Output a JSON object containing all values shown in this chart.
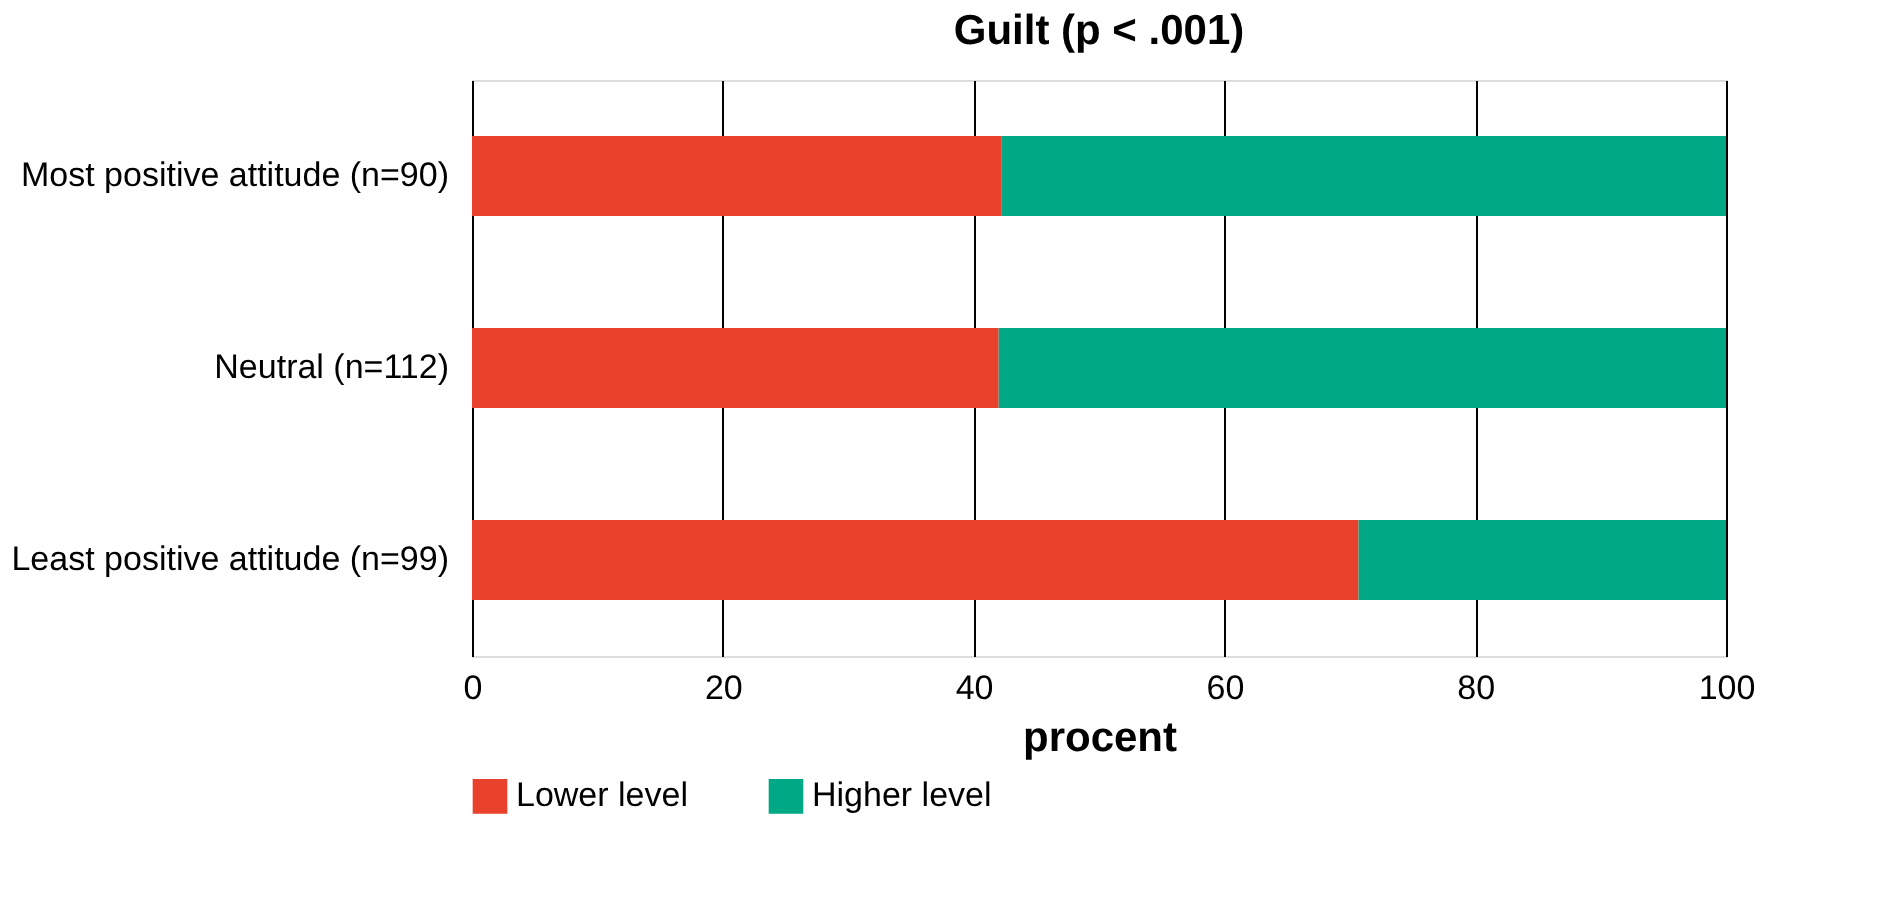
{
  "chart_data": {
    "type": "bar",
    "orientation": "horizontal",
    "stacked": true,
    "title": "Guilt (p < .001)",
    "xlabel": "procent",
    "categories": [
      "Most positive attitude (n=90)",
      "Neutral (n=112)",
      "Least positive attitude (n=99)"
    ],
    "series": [
      {
        "name": "Lower level",
        "color": "#e8412c",
        "values": [
          42.2,
          42.0,
          70.7
        ]
      },
      {
        "name": "Higher level",
        "color": "#00a885",
        "values": [
          57.8,
          58.0,
          29.3
        ]
      }
    ],
    "xlim": [
      0,
      100
    ],
    "xticks": [
      0,
      20,
      40,
      60,
      80,
      100
    ],
    "grid": "x",
    "legend": "bottom"
  }
}
